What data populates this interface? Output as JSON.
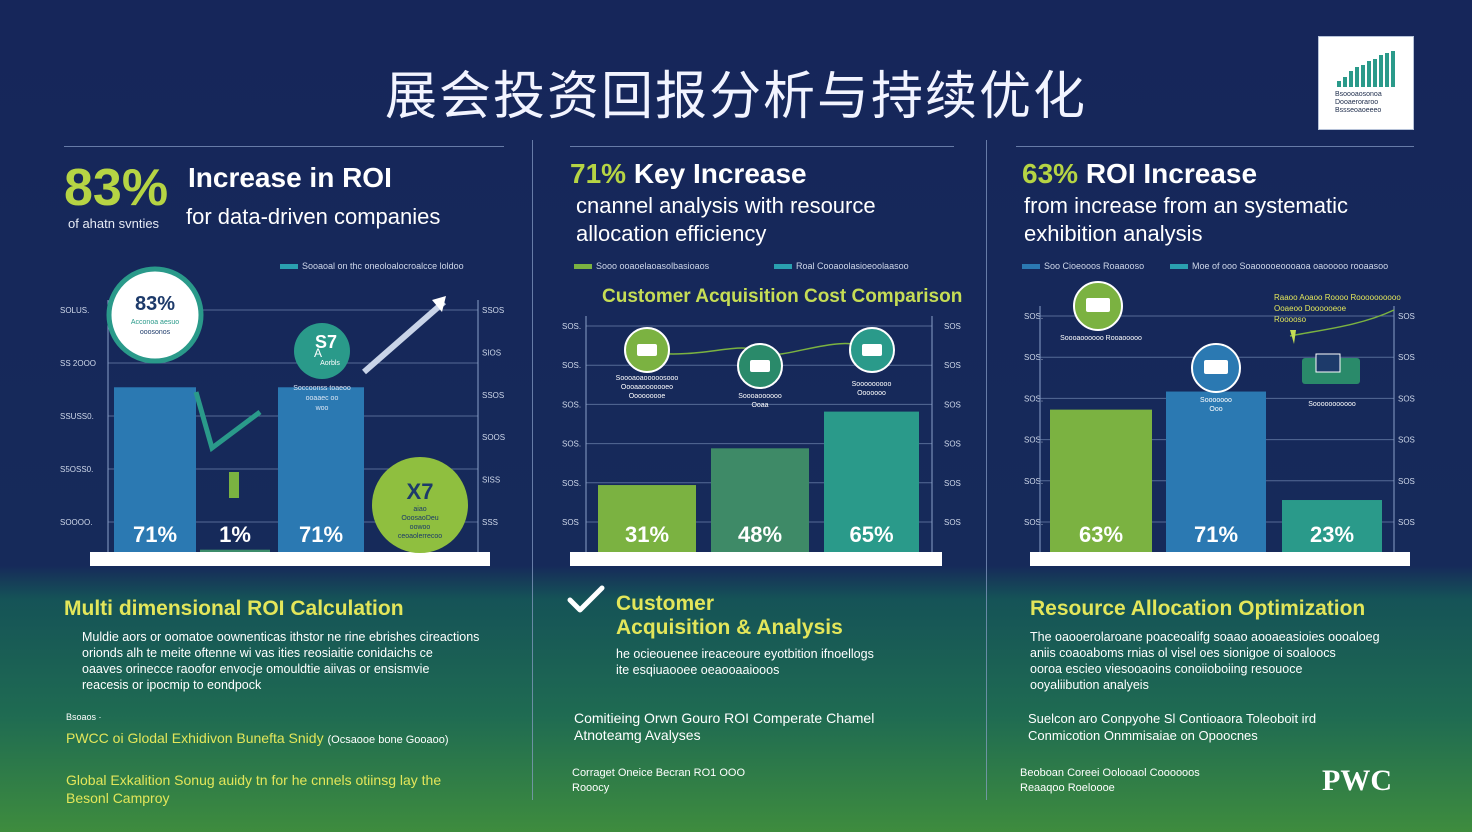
{
  "title": "展会投资回报分析与持续优化",
  "logo": {
    "lines": [
      "Bsoooaosonoa",
      "Dooaeroraroo",
      "Bssseoaoeeeo"
    ]
  },
  "panel1": {
    "stat": "83%",
    "stat_sub": "of ahatn svnties",
    "headline": "Increase in ROI",
    "subline": "for data-driven companies",
    "legend": "Sooaoal on thc oneoloalocroalcce loldoo",
    "circle_top": {
      "value": "83%",
      "lines": [
        "Acconoa aesuo",
        "ooosonos"
      ]
    },
    "label_mid": {
      "value": "S7",
      "prefix": "A",
      "suffix": "Aorbls"
    },
    "circle_bottom": {
      "value": "X7",
      "lines": [
        "aiao",
        "OoosaoDeu",
        "oowoo",
        "ceoaolerrecoo"
      ]
    },
    "bar_texts": [
      "Soccoonss toaeoo",
      "ooaaec oo",
      "woo"
    ],
    "section_title": "Multi dimensional ROI Calculation",
    "section_body": [
      "Muldie aors or oomatoe oownenticas ithstor ne rine ebrishes cireactions",
      "orionds alh te meite oftenne wi vas ities reosiaitie conidaichs ce",
      "oaaves orinecce raoofor envocje omouldtie aiivas or ensismvie",
      "reacesis or ipocmip to eondpock"
    ],
    "source_label": "Bsoaos ·",
    "source_line": "PWCC oi Glodal Exhidivon Bunefta Snidy",
    "source_note": "(Ocsaooe bone Gooaoo)",
    "footer": [
      "Global Exkalition Sonug auidy tn for he cnnels otiinsg lay the",
      "Besonl Camproy"
    ]
  },
  "panel2": {
    "headline_stat": "71%",
    "headline": "Key Increase",
    "subline": [
      "cnannel analysis with resource",
      "allocation efficiency"
    ],
    "legends": [
      "Sooo ooaoelaoasolbasioaos",
      "Roal Cooaoolasioeoolaasoo"
    ],
    "chart_title": "Customer Acquisition Cost Comparison",
    "bar_texts": [
      [
        "Soooaoaooooosooo",
        "Oooaaooooooeo",
        "Ooooooooe"
      ],
      [
        "Soooaoooooo",
        "Ooaa"
      ],
      [
        "Sooooooooo",
        "Ooooooo"
      ]
    ],
    "section_title": [
      "Customer",
      "Acquisition & Analysis"
    ],
    "section_body": [
      "he ocieouenee ireaceoure eyotbition ifnoellogs",
      "ite esqiuaooee oeaooaaiooos"
    ],
    "mid_text": [
      "Comitieing Orwn Gouro ROI Comperate Chamel",
      "Atnoteamg Avalyses"
    ],
    "footer": [
      "Corraget Oneice Becran RO1 OOO",
      "Rooocy"
    ]
  },
  "panel3": {
    "stat": "63%",
    "headline": "ROI Increase",
    "subline": [
      "from increase from an systematic",
      "exhibition analysis"
    ],
    "legends": [
      "Soo Cioeooos Roaaooso",
      "Moe of ooo Soaooooeoooaoa oaooooo rooaasoo"
    ],
    "annotation": [
      "Raaoo Aoaoo Roooo Roooooooooo",
      "Ooaeoo Doooooeoe",
      "Rooooso"
    ],
    "bar_texts": [
      [
        "Soooaoooooo Rooaooooo"
      ],
      [
        "Sooooooo",
        "Ooo"
      ],
      [
        "Sooooooooooo"
      ]
    ],
    "section_title": "Resource  Allocation Optimization",
    "section_body": [
      "The oaooerolaroane poaceoalifg soaao aooaeasioies oooaloeg",
      "aniis coaoaboms rnias ol visel oes sionigoe oi soaloocs",
      "ooroa escieo viesooaoins conoiioboiing resouoce",
      "ooyaliibution analyeis"
    ],
    "mid_text": [
      "Suelcon  aro Conpyohe  Sl Contioaora Toleoboit ird",
      "Conmicotion Onmmisaiae on Opoocnes"
    ],
    "footer": [
      "Beoboan Coreei Oolooaol Coooooos",
      "Reaaqoo Roeloooe"
    ],
    "brand": "PWC"
  },
  "colors": {
    "navy": "#16265a",
    "blue": "#2b79b2",
    "teal": "#2a9a8a",
    "green": "#7bb241",
    "lime": "#c6dd55",
    "darkgreen": "#3e8a67"
  },
  "chart_data": [
    {
      "type": "bar",
      "title": "",
      "categories": [
        "",
        "",
        ""
      ],
      "values": [
        71,
        1,
        71
      ],
      "data_labels": [
        "71%",
        "1%",
        "71%"
      ],
      "colors": [
        "#2b79b2",
        "#3c8c6a",
        "#2b79b2"
      ],
      "ylim": [
        0,
        100
      ],
      "y_ticks_left": [
        "SOLUS.",
        "SS 2OOO",
        "SSUSS0.",
        "S5OSS0.",
        "SOOOO."
      ],
      "y_ticks_right": [
        "SSOS",
        "SIOS",
        "SSOS",
        "SOOS",
        "SISS",
        "SSS"
      ],
      "grid": true
    },
    {
      "type": "bar",
      "title": "Customer Acquisition Cost Comparison",
      "categories": [
        "",
        "",
        ""
      ],
      "values": [
        31,
        48,
        65
      ],
      "data_labels": [
        "31%",
        "48%",
        "65%"
      ],
      "colors": [
        "#7bb241",
        "#3e8a67",
        "#2a9a8a"
      ],
      "ylim": [
        0,
        100
      ],
      "y_ticks_left": [
        "SOS.",
        "SOS.",
        "SOS.",
        "SOS.",
        "SOS.",
        "SOS"
      ],
      "y_ticks_right": [
        "SOS",
        "SOS",
        "SOS",
        "SOS",
        "SOS",
        "SOS"
      ],
      "grid": true
    },
    {
      "type": "bar",
      "title": "",
      "categories": [
        "",
        "",
        ""
      ],
      "values": [
        63,
        71,
        23
      ],
      "data_labels": [
        "63%",
        "71%",
        "23%"
      ],
      "colors": [
        "#7bb241",
        "#2b79b2",
        "#2a9a8a"
      ],
      "ylim": [
        0,
        100
      ],
      "y_ticks_left": [
        "SOS.",
        "SOS.",
        "SOS.",
        "SOS.",
        "SOS.",
        "SOS."
      ],
      "y_ticks_right": [
        "SOS",
        "SOS",
        "SOS",
        "SOS",
        "SOS",
        "SOS"
      ],
      "grid": true
    }
  ]
}
